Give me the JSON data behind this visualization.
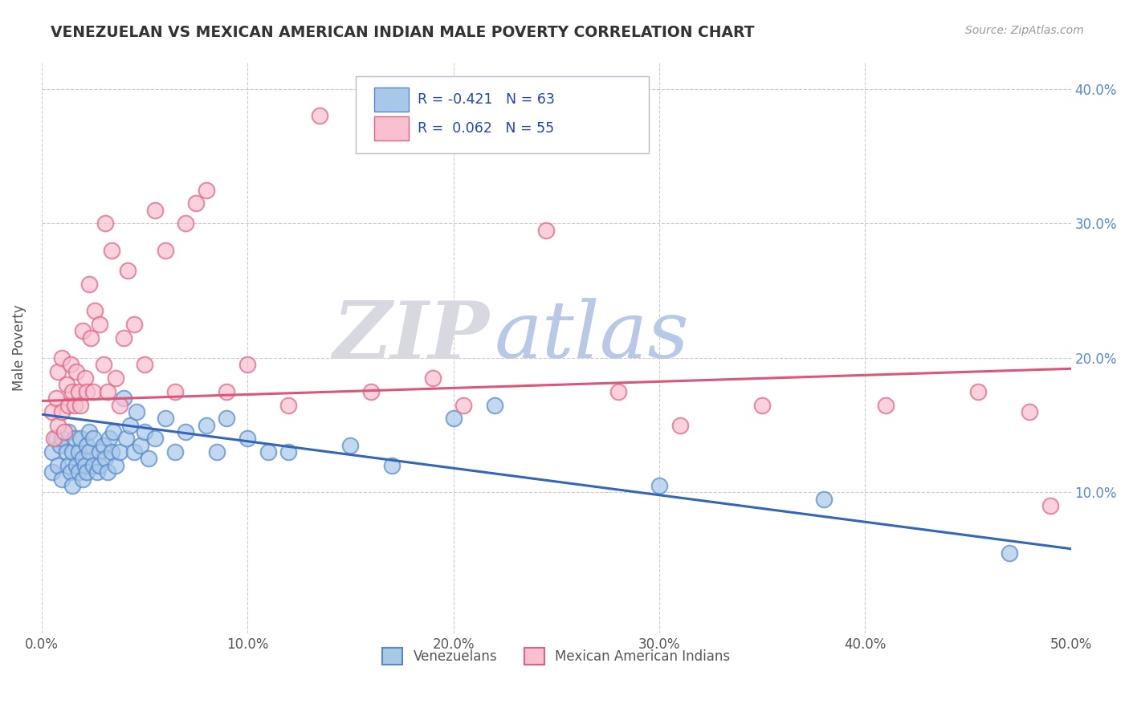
{
  "title": "VENEZUELAN VS MEXICAN AMERICAN INDIAN MALE POVERTY CORRELATION CHART",
  "source_text": "Source: ZipAtlas.com",
  "ylabel": "Male Poverty",
  "xlim": [
    0.0,
    0.5
  ],
  "ylim": [
    -0.005,
    0.42
  ],
  "xtick_labels": [
    "0.0%",
    "10.0%",
    "20.0%",
    "30.0%",
    "40.0%",
    "50.0%"
  ],
  "xtick_vals": [
    0.0,
    0.1,
    0.2,
    0.3,
    0.4,
    0.5
  ],
  "ytick_labels": [
    "10.0%",
    "20.0%",
    "30.0%",
    "40.0%"
  ],
  "ytick_vals": [
    0.1,
    0.2,
    0.3,
    0.4
  ],
  "blue_color": "#a8c8e8",
  "blue_edge": "#5588cc",
  "pink_color": "#f8c0d0",
  "pink_edge": "#e06080",
  "trend_blue": "#3366bb",
  "trend_pink": "#dd5577",
  "watermark_zip": "ZIP",
  "watermark_atlas": "atlas",
  "watermark_zip_color": "#d8d8e0",
  "watermark_atlas_color": "#b8c8e8",
  "title_color": "#333333",
  "background_color": "#ffffff",
  "grid_color": "#cccccc",
  "blue_scatter_x": [
    0.005,
    0.005,
    0.007,
    0.008,
    0.009,
    0.01,
    0.01,
    0.012,
    0.013,
    0.013,
    0.014,
    0.015,
    0.015,
    0.016,
    0.017,
    0.018,
    0.018,
    0.019,
    0.02,
    0.02,
    0.021,
    0.022,
    0.022,
    0.023,
    0.023,
    0.025,
    0.025,
    0.027,
    0.028,
    0.028,
    0.03,
    0.031,
    0.032,
    0.033,
    0.034,
    0.035,
    0.036,
    0.038,
    0.04,
    0.041,
    0.043,
    0.045,
    0.046,
    0.048,
    0.05,
    0.052,
    0.055,
    0.06,
    0.065,
    0.07,
    0.08,
    0.085,
    0.09,
    0.1,
    0.11,
    0.12,
    0.15,
    0.17,
    0.2,
    0.22,
    0.3,
    0.38,
    0.47
  ],
  "blue_scatter_y": [
    0.13,
    0.115,
    0.14,
    0.12,
    0.135,
    0.11,
    0.14,
    0.13,
    0.12,
    0.145,
    0.115,
    0.13,
    0.105,
    0.14,
    0.12,
    0.115,
    0.13,
    0.14,
    0.11,
    0.125,
    0.12,
    0.135,
    0.115,
    0.13,
    0.145,
    0.12,
    0.14,
    0.115,
    0.13,
    0.12,
    0.135,
    0.125,
    0.115,
    0.14,
    0.13,
    0.145,
    0.12,
    0.13,
    0.17,
    0.14,
    0.15,
    0.13,
    0.16,
    0.135,
    0.145,
    0.125,
    0.14,
    0.155,
    0.13,
    0.145,
    0.15,
    0.13,
    0.155,
    0.14,
    0.13,
    0.13,
    0.135,
    0.12,
    0.155,
    0.165,
    0.105,
    0.095,
    0.055
  ],
  "pink_scatter_x": [
    0.005,
    0.006,
    0.007,
    0.008,
    0.008,
    0.01,
    0.01,
    0.011,
    0.012,
    0.013,
    0.014,
    0.015,
    0.016,
    0.017,
    0.018,
    0.019,
    0.02,
    0.021,
    0.022,
    0.023,
    0.024,
    0.025,
    0.026,
    0.028,
    0.03,
    0.031,
    0.032,
    0.034,
    0.036,
    0.038,
    0.04,
    0.042,
    0.045,
    0.05,
    0.055,
    0.06,
    0.065,
    0.07,
    0.075,
    0.08,
    0.09,
    0.1,
    0.12,
    0.135,
    0.16,
    0.19,
    0.205,
    0.245,
    0.28,
    0.31,
    0.35,
    0.41,
    0.455,
    0.48,
    0.49
  ],
  "pink_scatter_y": [
    0.16,
    0.14,
    0.17,
    0.15,
    0.19,
    0.16,
    0.2,
    0.145,
    0.18,
    0.165,
    0.195,
    0.175,
    0.165,
    0.19,
    0.175,
    0.165,
    0.22,
    0.185,
    0.175,
    0.255,
    0.215,
    0.175,
    0.235,
    0.225,
    0.195,
    0.3,
    0.175,
    0.28,
    0.185,
    0.165,
    0.215,
    0.265,
    0.225,
    0.195,
    0.31,
    0.28,
    0.175,
    0.3,
    0.315,
    0.325,
    0.175,
    0.195,
    0.165,
    0.38,
    0.175,
    0.185,
    0.165,
    0.295,
    0.175,
    0.15,
    0.165,
    0.165,
    0.175,
    0.16,
    0.09
  ],
  "blue_trend_x": [
    0.0,
    0.5
  ],
  "blue_trend_y": [
    0.158,
    0.058
  ],
  "pink_trend_x": [
    0.0,
    0.5
  ],
  "pink_trend_y": [
    0.168,
    0.192
  ]
}
